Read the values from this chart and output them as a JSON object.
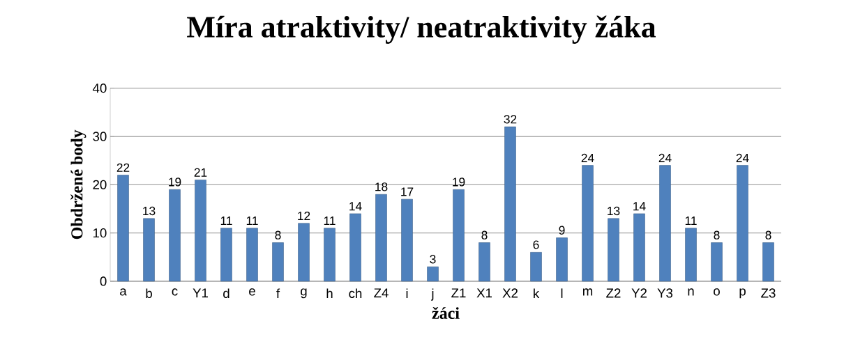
{
  "chart_data": {
    "type": "bar",
    "title": "Míra atraktivity/ neatraktivity žáka",
    "xlabel": "žáci",
    "ylabel": "Obdržené body",
    "categories": [
      "a",
      "b",
      "c",
      "Y1",
      "d",
      "e",
      "f",
      "g",
      "h",
      "ch",
      "Z4",
      "i",
      "j",
      "Z1",
      "X1",
      "X2",
      "k",
      "l",
      "m",
      "Z2",
      "Y2",
      "Y3",
      "n",
      "o",
      "p",
      "Z3"
    ],
    "values": [
      22,
      13,
      19,
      21,
      11,
      11,
      8,
      12,
      11,
      14,
      18,
      17,
      3,
      19,
      8,
      32,
      6,
      9,
      24,
      13,
      14,
      24,
      11,
      8,
      24,
      8
    ],
    "color": "#4f81bd",
    "ylim": [
      0,
      40
    ],
    "yticks": [
      0,
      10,
      20,
      30,
      40
    ],
    "grid": "y",
    "data_labels": true
  }
}
